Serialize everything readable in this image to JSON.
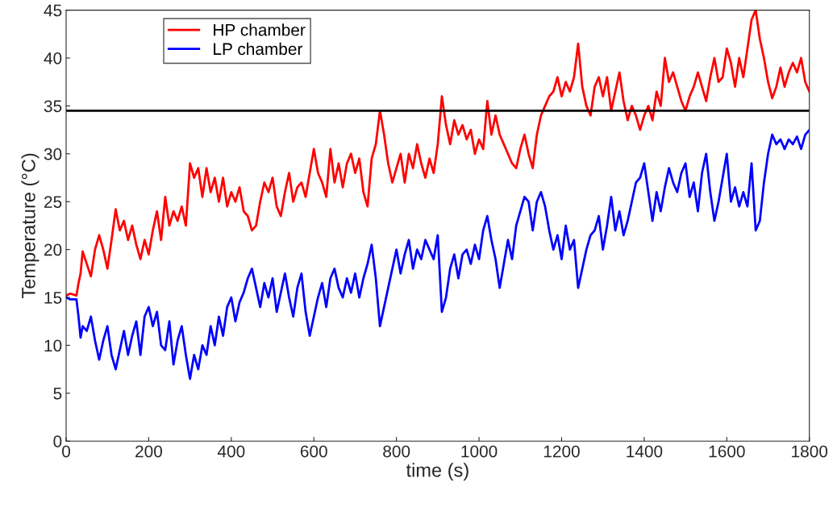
{
  "chart_data": {
    "type": "line",
    "xlabel": "time (s)",
    "ylabel": "Temperature (°C)",
    "xlim": [
      0,
      1800
    ],
    "ylim": [
      0,
      45
    ],
    "xticks": [
      0,
      200,
      400,
      600,
      800,
      1000,
      1200,
      1400,
      1600,
      1800
    ],
    "yticks": [
      0,
      5,
      10,
      15,
      20,
      25,
      30,
      35,
      40,
      45
    ],
    "grid": false,
    "legend": "top left",
    "ref_lines": [
      {
        "axis": "y",
        "value": 34.5,
        "color": "#000000"
      }
    ],
    "series": [
      {
        "name": "HP chamber",
        "color": "#ff0000",
        "x": [
          0,
          10,
          25,
          30,
          35,
          40,
          50,
          60,
          70,
          80,
          90,
          100,
          110,
          120,
          130,
          140,
          150,
          160,
          170,
          180,
          190,
          200,
          210,
          220,
          230,
          240,
          250,
          260,
          270,
          280,
          290,
          300,
          310,
          320,
          330,
          340,
          350,
          360,
          370,
          380,
          390,
          400,
          410,
          420,
          430,
          440,
          450,
          460,
          470,
          480,
          490,
          500,
          510,
          520,
          530,
          540,
          550,
          560,
          570,
          580,
          590,
          600,
          610,
          620,
          630,
          640,
          650,
          660,
          670,
          680,
          690,
          700,
          710,
          720,
          730,
          740,
          750,
          760,
          770,
          780,
          790,
          800,
          810,
          820,
          830,
          840,
          850,
          860,
          870,
          880,
          890,
          900,
          910,
          920,
          930,
          940,
          950,
          960,
          970,
          980,
          990,
          1000,
          1010,
          1020,
          1030,
          1040,
          1050,
          1060,
          1070,
          1080,
          1090,
          1100,
          1110,
          1120,
          1130,
          1140,
          1150,
          1160,
          1170,
          1180,
          1190,
          1200,
          1210,
          1220,
          1230,
          1240,
          1250,
          1260,
          1270,
          1280,
          1290,
          1300,
          1310,
          1320,
          1330,
          1340,
          1350,
          1360,
          1370,
          1380,
          1390,
          1400,
          1410,
          1420,
          1430,
          1440,
          1450,
          1460,
          1470,
          1480,
          1490,
          1500,
          1510,
          1520,
          1530,
          1540,
          1550,
          1560,
          1570,
          1580,
          1590,
          1600,
          1610,
          1620,
          1630,
          1640,
          1650,
          1660,
          1670,
          1680,
          1690,
          1700,
          1710,
          1720,
          1730,
          1740,
          1750,
          1760,
          1770,
          1780,
          1790,
          1800
        ],
        "values": [
          15.2,
          15.4,
          15.2,
          16.5,
          17.5,
          19.8,
          18.5,
          17.2,
          20,
          21.5,
          20,
          18,
          21,
          24.2,
          22,
          23,
          21,
          22.5,
          20.5,
          19,
          21,
          19.5,
          22,
          24,
          21,
          25.5,
          22.5,
          24,
          23,
          24.5,
          22.5,
          29,
          27.5,
          28.5,
          25.5,
          28.5,
          26,
          27.5,
          25,
          27.5,
          24.5,
          26,
          25,
          26.5,
          24,
          23.5,
          22,
          22.5,
          25,
          27,
          26,
          27.5,
          24.5,
          23.5,
          26,
          28,
          25,
          26.5,
          27,
          25.5,
          28,
          30.5,
          28,
          27,
          25.5,
          30.5,
          27,
          29,
          26.5,
          29,
          30,
          28,
          29.5,
          26,
          24.5,
          29.5,
          31,
          34.5,
          32,
          29,
          27,
          28.5,
          30,
          27,
          30,
          28.5,
          31,
          29,
          27.5,
          29.5,
          28,
          31,
          36,
          33,
          31,
          33.5,
          32,
          33,
          31.5,
          32.5,
          30,
          31.5,
          30.5,
          35.5,
          32,
          34,
          32,
          31,
          30,
          29,
          28.5,
          30.5,
          32,
          30,
          28.5,
          32,
          34,
          35,
          36,
          36.5,
          38,
          36,
          37.5,
          36.5,
          38,
          41.5,
          37,
          35,
          34,
          37,
          38,
          36,
          38,
          34.5,
          36.5,
          38.5,
          35.5,
          33.5,
          35,
          34,
          32.5,
          34,
          35,
          33.5,
          36.5,
          35,
          40,
          37.5,
          38.5,
          37,
          35.5,
          34.5,
          36,
          37,
          38.5,
          37,
          35.5,
          38,
          40,
          37.5,
          38,
          41,
          39.5,
          37,
          40,
          38,
          41,
          44,
          45,
          42,
          40,
          37.5,
          35.8,
          37,
          39,
          37,
          38.5,
          39.5,
          38.5,
          40,
          37.5,
          36.5
        ]
      },
      {
        "name": "LP chamber",
        "color": "#0000ff",
        "x": [
          0,
          10,
          25,
          30,
          35,
          40,
          50,
          60,
          70,
          80,
          90,
          100,
          110,
          120,
          130,
          140,
          150,
          160,
          170,
          180,
          190,
          200,
          210,
          220,
          230,
          240,
          250,
          260,
          270,
          280,
          290,
          300,
          310,
          320,
          330,
          340,
          350,
          360,
          370,
          380,
          390,
          400,
          410,
          420,
          430,
          440,
          450,
          460,
          470,
          480,
          490,
          500,
          510,
          520,
          530,
          540,
          550,
          560,
          570,
          580,
          590,
          600,
          610,
          620,
          630,
          640,
          650,
          660,
          670,
          680,
          690,
          700,
          710,
          720,
          730,
          740,
          750,
          760,
          770,
          780,
          790,
          800,
          810,
          820,
          830,
          840,
          850,
          860,
          870,
          880,
          890,
          900,
          910,
          920,
          930,
          940,
          950,
          960,
          970,
          980,
          990,
          1000,
          1010,
          1020,
          1030,
          1040,
          1050,
          1060,
          1070,
          1080,
          1090,
          1100,
          1110,
          1120,
          1130,
          1140,
          1150,
          1160,
          1170,
          1180,
          1190,
          1200,
          1210,
          1220,
          1230,
          1240,
          1250,
          1260,
          1270,
          1280,
          1290,
          1300,
          1310,
          1320,
          1330,
          1340,
          1350,
          1360,
          1370,
          1380,
          1390,
          1400,
          1410,
          1420,
          1430,
          1440,
          1450,
          1460,
          1470,
          1480,
          1490,
          1500,
          1510,
          1520,
          1530,
          1540,
          1550,
          1560,
          1570,
          1580,
          1590,
          1600,
          1610,
          1620,
          1630,
          1640,
          1650,
          1660,
          1670,
          1680,
          1690,
          1700,
          1710,
          1720,
          1730,
          1740,
          1750,
          1760,
          1770,
          1780,
          1790,
          1800
        ],
        "values": [
          15,
          14.8,
          14.8,
          13,
          10.8,
          12,
          11.5,
          13,
          10.5,
          8.5,
          10.5,
          12,
          9,
          7.5,
          9.5,
          11.5,
          9,
          11,
          12.5,
          9,
          13,
          14,
          12,
          13.5,
          10,
          9.5,
          12.5,
          8,
          10.5,
          12,
          9,
          6.5,
          9,
          7.5,
          10,
          9,
          12,
          10,
          13,
          11,
          14,
          15,
          12.5,
          14.5,
          15.5,
          17,
          18,
          16,
          14,
          16.5,
          15,
          17,
          13.5,
          15.5,
          17.5,
          15,
          13,
          16,
          17.5,
          13.5,
          11,
          13,
          15,
          16.5,
          14,
          17,
          18,
          16,
          15,
          17,
          15.5,
          17.5,
          15,
          17,
          18.5,
          20.5,
          17,
          12,
          14,
          16,
          18,
          20,
          17.5,
          19.5,
          21,
          18,
          20,
          19,
          21,
          20,
          19,
          21.5,
          13.5,
          15,
          18,
          19.5,
          17,
          19.5,
          20,
          18.5,
          20.5,
          19,
          22,
          23.5,
          21,
          19,
          16,
          18.5,
          21,
          19,
          22.5,
          24,
          25.5,
          25,
          22,
          25,
          26,
          24.5,
          22,
          20,
          21.5,
          19,
          22.5,
          20,
          21,
          16,
          18,
          20,
          21.5,
          22,
          23.5,
          20,
          22.5,
          25.5,
          22,
          24,
          21.5,
          23,
          25,
          27,
          27.5,
          29,
          26,
          23,
          26,
          24,
          26.5,
          28.5,
          27,
          26,
          28,
          29,
          25.5,
          27,
          24,
          28,
          30,
          26,
          23,
          25,
          27.5,
          30,
          25,
          26.5,
          24.5,
          26,
          24.5,
          29,
          22,
          23,
          27,
          30,
          32,
          31,
          31.5,
          30.5,
          31.5,
          31,
          31.8,
          30.5,
          32,
          32.5
        ]
      }
    ]
  }
}
